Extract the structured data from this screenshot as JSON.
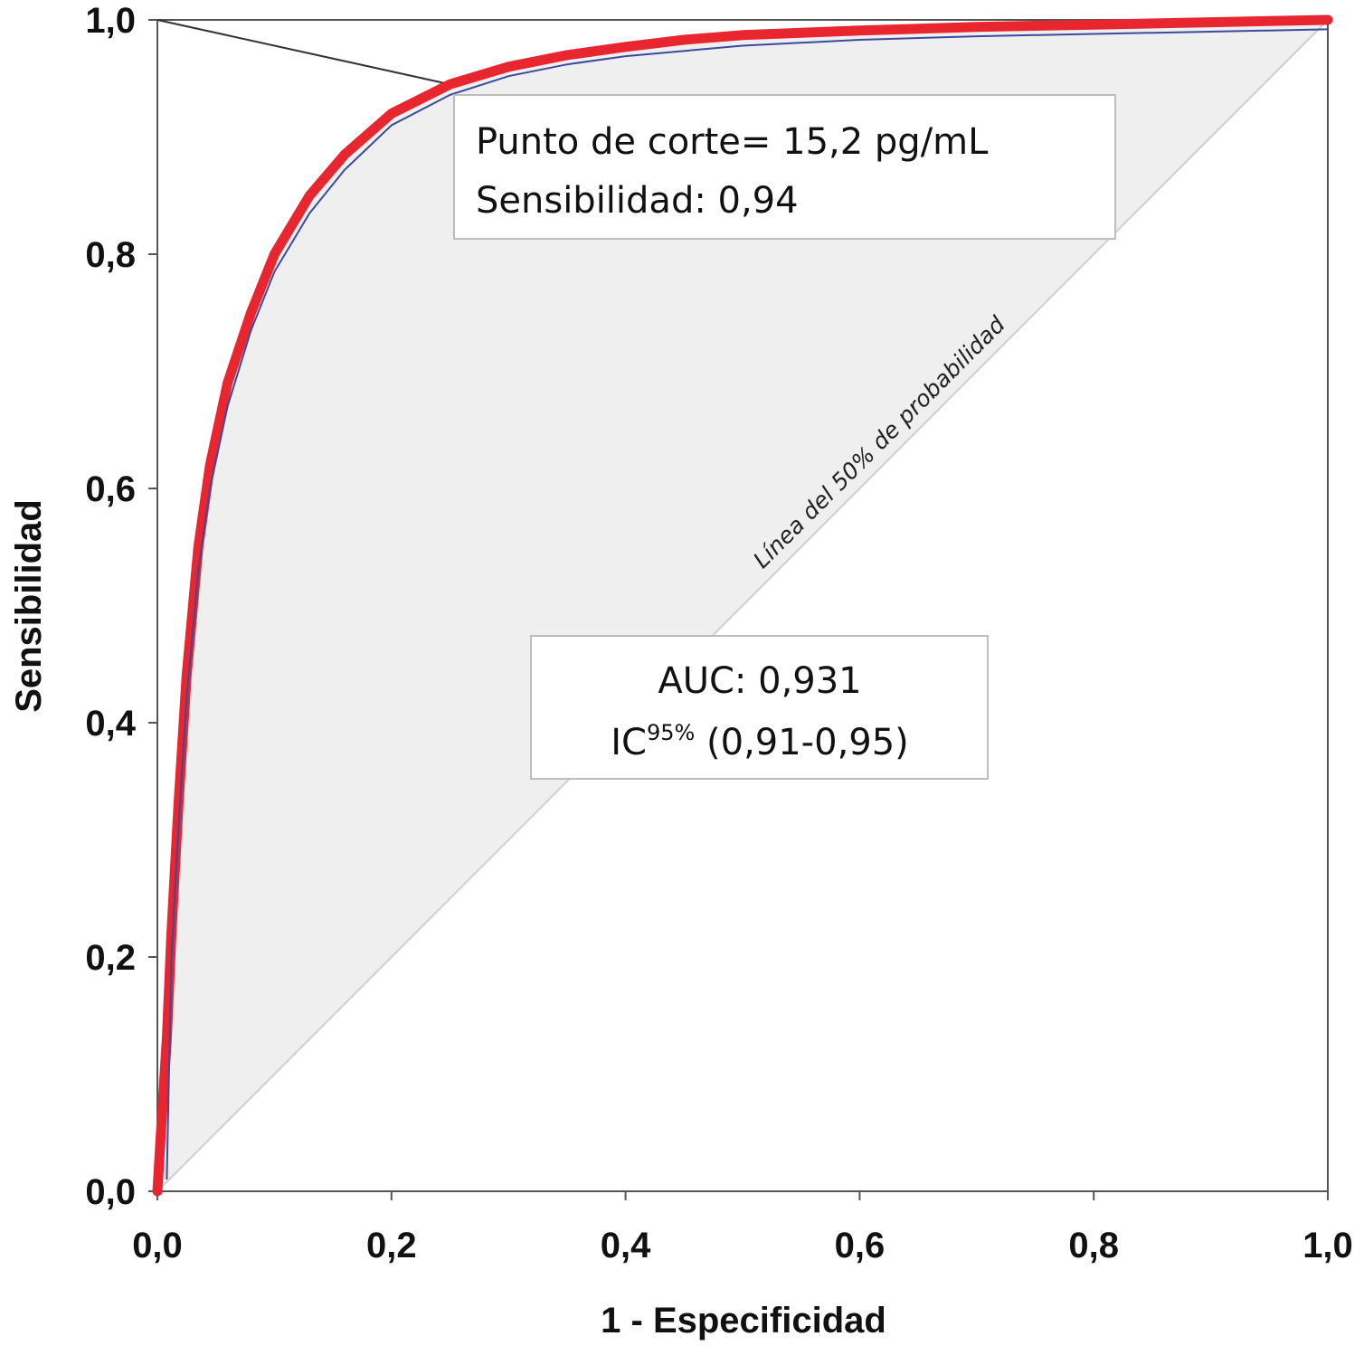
{
  "chart_data": {
    "type": "line",
    "xlabel": "1 - Especificidad",
    "ylabel": "Sensibilidad",
    "xlim": [
      0,
      1
    ],
    "ylim": [
      0,
      1
    ],
    "x_ticks": [
      "0,0",
      "0,2",
      "0,4",
      "0,6",
      "0,8",
      "1,0"
    ],
    "y_ticks": [
      "0,0",
      "0,2",
      "0,4",
      "0,6",
      "0,8",
      "1,0"
    ],
    "grid": false,
    "series": [
      {
        "color": "#e8262f",
        "x": [
          0,
          0.003,
          0.008,
          0.012,
          0.018,
          0.025,
          0.035,
          0.045,
          0.06,
          0.08,
          0.1,
          0.13,
          0.16,
          0.2,
          0.25,
          0.3,
          0.35,
          0.4,
          0.45,
          0.5,
          0.6,
          0.7,
          0.8,
          0.9,
          1.0
        ],
        "y": [
          0,
          0.05,
          0.13,
          0.22,
          0.33,
          0.44,
          0.55,
          0.62,
          0.69,
          0.75,
          0.8,
          0.85,
          0.885,
          0.92,
          0.945,
          0.96,
          0.97,
          0.977,
          0.983,
          0.987,
          0.991,
          0.994,
          0.996,
          0.998,
          1.0
        ]
      },
      {
        "color": "#3a4aa0",
        "x": [
          0.008,
          0.012,
          0.018,
          0.025,
          0.035,
          0.045,
          0.06,
          0.08,
          0.1,
          0.13,
          0.16,
          0.2,
          0.25,
          0.3,
          0.35,
          0.4,
          0.5,
          0.6,
          0.7,
          0.8,
          0.9,
          1.0
        ],
        "y": [
          0.01,
          0.2,
          0.31,
          0.42,
          0.53,
          0.6,
          0.67,
          0.735,
          0.785,
          0.835,
          0.872,
          0.91,
          0.936,
          0.952,
          0.962,
          0.969,
          0.978,
          0.983,
          0.986,
          0.988,
          0.99,
          0.992
        ]
      }
    ],
    "reference_line": {
      "label": "Línea del 50% de probabilidad",
      "x": [
        0,
        1
      ],
      "y": [
        0,
        1
      ]
    },
    "cutoff_pointer": {
      "from": [
        0,
        1.0
      ],
      "to": [
        0.25,
        0.945
      ]
    },
    "annotations": {
      "cutoff_line1": "Punto de corte= 15,2 pg/mL",
      "cutoff_line2": "Sensibilidad: 0,94",
      "auc_line1": "AUC: 0,931",
      "ic_prefix": "IC",
      "ic_sup": "95%",
      "ic_rest": " (0,91-0,95)"
    }
  }
}
